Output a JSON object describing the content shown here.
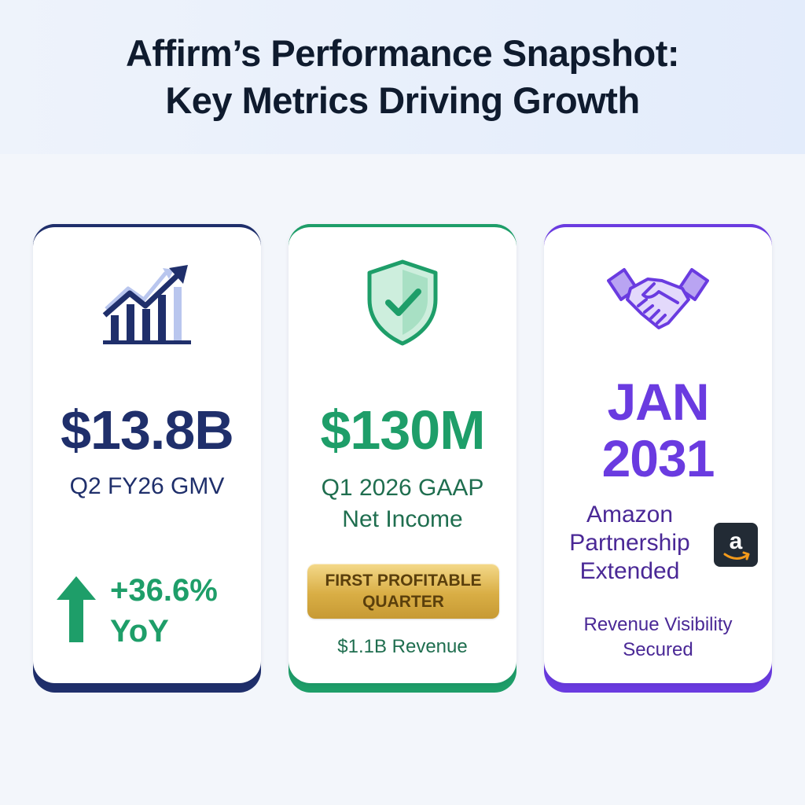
{
  "header": {
    "title_line1": "Affirm’s Performance Snapshot:",
    "title_line2": "Key Metrics Driving Growth"
  },
  "cards": [
    {
      "icon": "growth-chart-icon",
      "value": "$13.8B",
      "label": "Q2 FY26 GMV",
      "change_line1": "+36.6%",
      "change_line2": "YoY",
      "change_icon": "arrow-up-icon",
      "accent": "#1f2f6b",
      "change_color": "#1e9e69"
    },
    {
      "icon": "shield-check-icon",
      "value": "$130M",
      "label_line1": "Q1 2026 GAAP",
      "label_line2": "Net Income",
      "badge_line1": "FIRST PROFITABLE",
      "badge_line2": "QUARTER",
      "revenue": "$1.1B Revenue",
      "accent": "#1e9e69"
    },
    {
      "icon": "handshake-icon",
      "value_line1": "JAN",
      "value_line2": "2031",
      "label_line1": "Amazon",
      "label_line2": "Partnership",
      "label_line3": "Extended",
      "logo": "amazon-logo-icon",
      "note_line1": "Revenue Visibility",
      "note_line2": "Secured",
      "accent": "#6a3be0"
    }
  ]
}
